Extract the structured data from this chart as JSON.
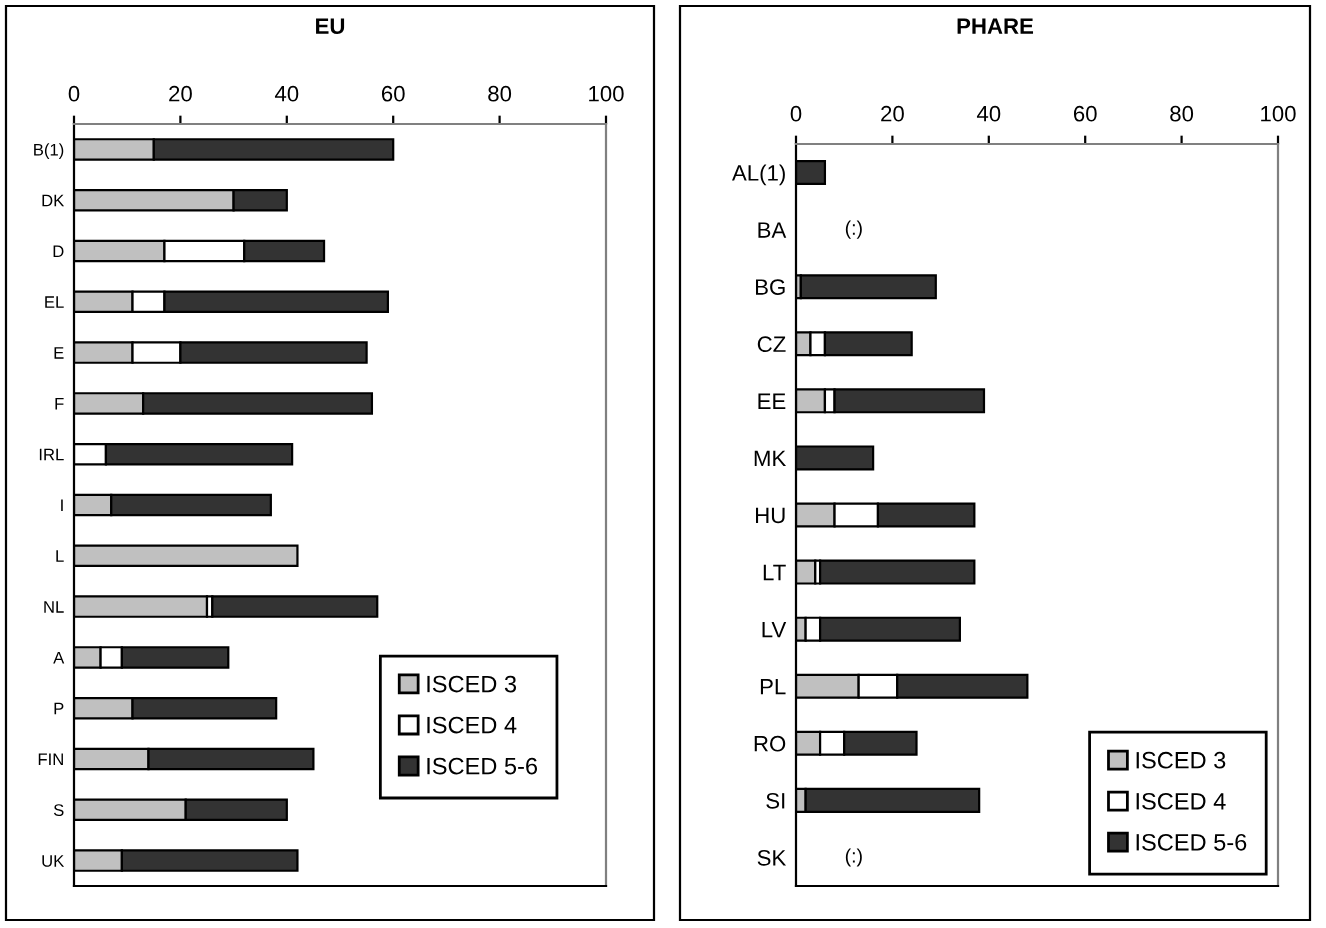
{
  "chart_data": [
    {
      "type": "bar",
      "orientation": "horizontal",
      "stacked": true,
      "title": "EU",
      "categories": [
        "B(1)",
        "DK",
        "D",
        "EL",
        "E",
        "F",
        "IRL",
        "I",
        "L",
        "NL",
        "A",
        "P",
        "FIN",
        "S",
        "UK"
      ],
      "series": [
        {
          "name": "ISCED 3",
          "color": "#c0c0c0",
          "values": [
            15,
            30,
            17,
            11,
            11,
            13,
            0,
            7,
            42,
            25,
            5,
            11,
            14,
            21,
            9
          ]
        },
        {
          "name": "ISCED 4",
          "color": "#ffffff",
          "values": [
            0,
            0,
            15,
            6,
            9,
            0,
            6,
            0,
            0,
            1,
            4,
            0,
            0,
            0,
            0
          ]
        },
        {
          "name": "ISCED 5-6",
          "color": "#333333",
          "values": [
            45,
            10,
            15,
            42,
            35,
            43,
            35,
            30,
            0,
            31,
            20,
            27,
            31,
            19,
            33
          ]
        }
      ],
      "xlim": [
        0,
        100
      ],
      "xticks": [
        0,
        20,
        40,
        60,
        80,
        100
      ],
      "legend": "bottom right"
    },
    {
      "type": "bar",
      "orientation": "horizontal",
      "stacked": true,
      "title": "PHARE",
      "categories": [
        "AL(1)",
        "BA",
        "BG",
        "CZ",
        "EE",
        "MK",
        "HU",
        "LT",
        "LV",
        "PL",
        "RO",
        "SI",
        "SK"
      ],
      "series": [
        {
          "name": "ISCED 3",
          "color": "#c0c0c0",
          "values": [
            0,
            null,
            1,
            3,
            6,
            0,
            8,
            4,
            2,
            13,
            5,
            2,
            null
          ]
        },
        {
          "name": "ISCED 4",
          "color": "#ffffff",
          "values": [
            0,
            null,
            0,
            3,
            2,
            0,
            9,
            1,
            3,
            8,
            5,
            0,
            null
          ]
        },
        {
          "name": "ISCED 5-6",
          "color": "#333333",
          "values": [
            6,
            null,
            28,
            18,
            31,
            16,
            20,
            32,
            29,
            27,
            15,
            36,
            null
          ]
        }
      ],
      "xlim": [
        0,
        100
      ],
      "xticks": [
        0,
        20,
        40,
        60,
        80,
        100
      ],
      "legend": "bottom right",
      "annotations": [
        "(:)",
        "(:)"
      ]
    }
  ]
}
